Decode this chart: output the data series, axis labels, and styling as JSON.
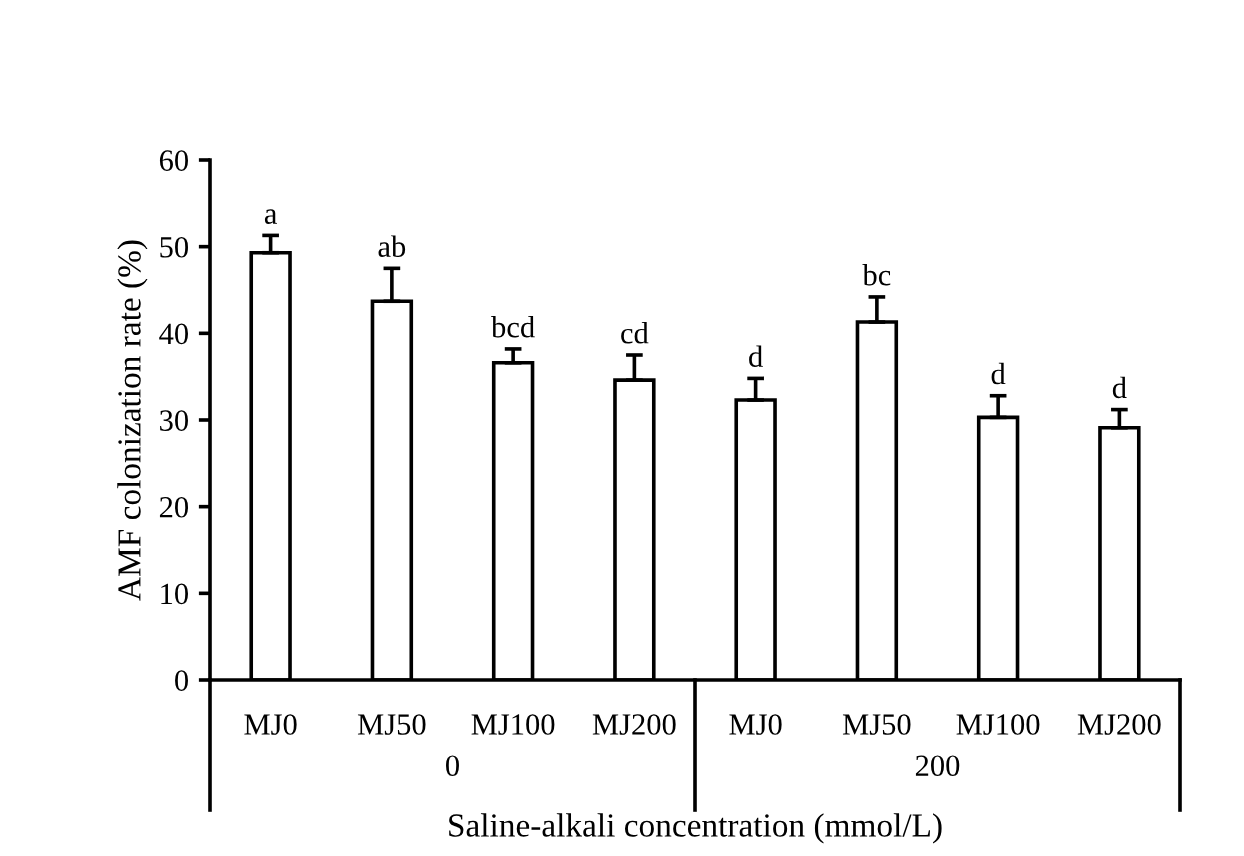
{
  "chart_data": {
    "type": "bar",
    "ylabel": "AMF colonization rate (%)",
    "xlabel": "Saline-alkali concentration (mmol/L)",
    "categories": [
      "MJ0",
      "MJ50",
      "MJ100",
      "MJ200",
      "MJ0",
      "MJ50",
      "MJ100",
      "MJ200"
    ],
    "values": [
      49.3,
      43.7,
      36.6,
      34.6,
      32.3,
      41.3,
      30.3,
      29.1
    ],
    "errors": [
      2.0,
      3.8,
      1.6,
      2.9,
      2.5,
      2.9,
      2.5,
      2.1
    ],
    "color": "#ffffff",
    "ylim": [
      0,
      60
    ],
    "yticks": [
      0,
      10,
      20,
      30,
      40,
      50,
      60
    ],
    "grid": false,
    "legend": false,
    "annotations": [
      "a",
      "ab",
      "bcd",
      "cd",
      "d",
      "bc",
      "d",
      "d",
      "0",
      "200"
    ]
  }
}
